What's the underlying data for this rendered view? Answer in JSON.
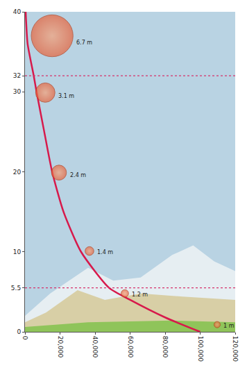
{
  "chart_data": {
    "type": "line",
    "x": [
      400,
      1500,
      5000,
      6600,
      11000,
      15500,
      22000,
      32000,
      48000,
      60000,
      80000,
      100000
    ],
    "values": [
      40,
      36,
      32,
      30,
      25,
      20,
      15,
      10,
      5.5,
      4,
      1.8,
      0
    ],
    "color": "#d7194b",
    "xlim": [
      0,
      120000
    ],
    "xticks": [
      0,
      {
        "value": 20000,
        "label": "20,000"
      },
      {
        "value": 40000,
        "label": "40,000"
      },
      {
        "value": 60000,
        "label": "60,000"
      },
      {
        "value": 80000,
        "label": "80,000"
      },
      {
        "value": 100000,
        "label": "100,000"
      },
      {
        "value": 120000,
        "label": "120,000"
      }
    ],
    "ylim": [
      0,
      40
    ],
    "yticks": [
      0,
      5.5,
      10,
      20,
      30,
      32,
      40
    ],
    "grid": false,
    "hlines": [
      32,
      5.5
    ],
    "balloons": [
      {
        "x": 15500,
        "y": 37,
        "diameter": 6.7,
        "label": "6.7 m"
      },
      {
        "x": 11600,
        "y": 29.9,
        "diameter": 3.1,
        "label": "3.1 m"
      },
      {
        "x": 19400,
        "y": 19.9,
        "diameter": 2.4,
        "label": "2.4 m"
      },
      {
        "x": 36800,
        "y": 10.1,
        "diameter": 1.4,
        "label": "1.4 m"
      },
      {
        "x": 57000,
        "y": 4.8,
        "diameter": 1.2,
        "label": "1.2 m"
      },
      {
        "x": 109700,
        "y": 0.9,
        "diameter": 1,
        "label": "1 m"
      }
    ]
  }
}
